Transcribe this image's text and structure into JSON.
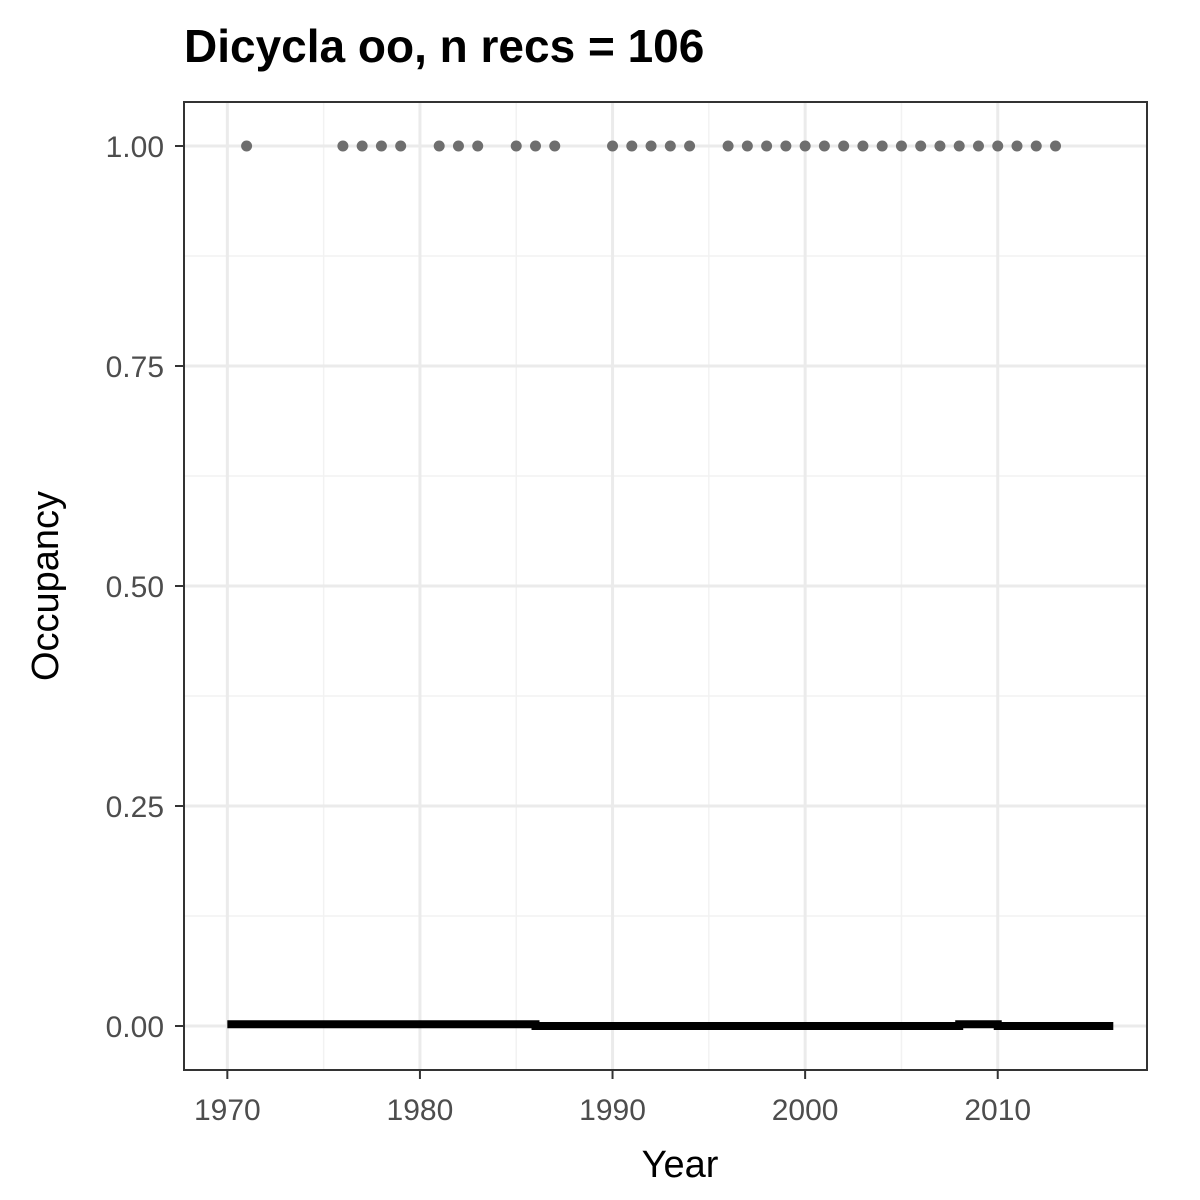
{
  "chart_data": {
    "type": "scatter",
    "title": "Dicycla oo, n recs = 106",
    "xlabel": "Year",
    "ylabel": "Occupancy",
    "xlim": [
      1967.75,
      2017.75
    ],
    "ylim": [
      -0.05,
      1.05
    ],
    "x_ticks": [
      1970,
      1980,
      1990,
      2000,
      2010
    ],
    "x_tick_labels": [
      "1970",
      "1980",
      "1990",
      "2000",
      "2010"
    ],
    "y_ticks": [
      0,
      0.25,
      0.5,
      0.75,
      1.0
    ],
    "y_tick_labels": [
      "0.00",
      "0.25",
      "0.50",
      "0.75",
      "1.00"
    ],
    "grid": true,
    "series": [
      {
        "kind": "points",
        "color": "#6e6e6e",
        "x": [
          1971,
          1976,
          1977,
          1978,
          1979,
          1981,
          1982,
          1983,
          1985,
          1986,
          1987,
          1990,
          1991,
          1992,
          1993,
          1994,
          1996,
          1997,
          1998,
          1999,
          2000,
          2001,
          2002,
          2003,
          2004,
          2005,
          2006,
          2007,
          2008,
          2009,
          2010,
          2011,
          2012,
          2013
        ],
        "y": [
          1,
          1,
          1,
          1,
          1,
          1,
          1,
          1,
          1,
          1,
          1,
          1,
          1,
          1,
          1,
          1,
          1,
          1,
          1,
          1,
          1,
          1,
          1,
          1,
          1,
          1,
          1,
          1,
          1,
          1,
          1,
          1,
          1,
          1
        ]
      },
      {
        "kind": "line",
        "color": "#000000",
        "x": [
          1970,
          1986,
          1986,
          2008,
          2008,
          2010,
          2010,
          2016
        ],
        "y": [
          0.002,
          0.002,
          0.0,
          0.0,
          0.002,
          0.002,
          0.0,
          0.0
        ]
      }
    ]
  }
}
